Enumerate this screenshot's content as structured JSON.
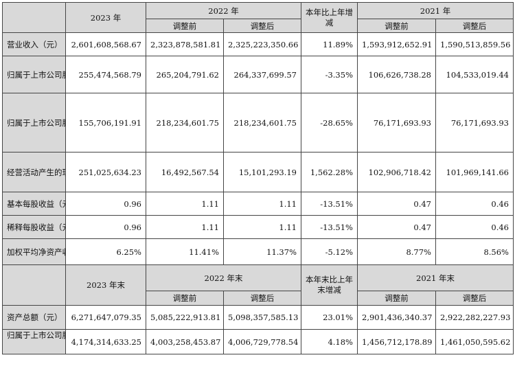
{
  "header1": {
    "y2023": "2023 年",
    "y2022": "2022 年",
    "change": "本年比上年增减",
    "y2021": "2021 年",
    "before": "调整前",
    "after": "调整后"
  },
  "rows1": [
    {
      "label": "营业收入（元）",
      "v2023": "2,601,608,568.67",
      "v2022_before": "2,323,878,581.81",
      "v2022_after": "2,325,223,350.66",
      "change": "11.89%",
      "v2021_before": "1,593,912,652.91",
      "v2021_after": "1,590,513,859.56"
    },
    {
      "label": "归属于上市公司股东的净利润（元）",
      "v2023": "255,474,568.79",
      "v2022_before": "265,204,791.62",
      "v2022_after": "264,337,699.57",
      "change": "-3.35%",
      "v2021_before": "106,626,738.28",
      "v2021_after": "104,533,019.44"
    },
    {
      "label": "归属于上市公司股东的扣除非经常性损益的净利润（元）",
      "v2023": "155,706,191.91",
      "v2022_before": "218,234,601.75",
      "v2022_after": "218,234,601.75",
      "change": "-28.65%",
      "v2021_before": "76,171,693.93",
      "v2021_after": "76,171,693.93"
    },
    {
      "label": "经营活动产生的现金流量净额（元）",
      "v2023": "251,025,634.23",
      "v2022_before": "16,492,567.54",
      "v2022_after": "15,101,293.19",
      "change": "1,562.28%",
      "v2021_before": "102,906,718.42",
      "v2021_after": "101,969,141.66"
    },
    {
      "label": "基本每股收益（元/股）",
      "v2023": "0.96",
      "v2022_before": "1.11",
      "v2022_after": "1.11",
      "change": "-13.51%",
      "v2021_before": "0.47",
      "v2021_after": "0.46"
    },
    {
      "label": "稀释每股收益（元/股）",
      "v2023": "0.96",
      "v2022_before": "1.11",
      "v2022_after": "1.11",
      "change": "-13.51%",
      "v2021_before": "0.47",
      "v2021_after": "0.46"
    },
    {
      "label": "加权平均净资产收益率",
      "v2023": "6.25%",
      "v2022_before": "11.41%",
      "v2022_after": "11.37%",
      "change": "-5.12%",
      "v2021_before": "8.77%",
      "v2021_after": "8.56%"
    }
  ],
  "header2": {
    "y2023": "2023 年末",
    "y2022": "2022 年末",
    "change": "本年末比上年末增减",
    "y2021": "2021 年末",
    "before": "调整前",
    "after": "调整后"
  },
  "rows2": [
    {
      "label": "资产总额（元）",
      "v2023": "6,271,647,079.35",
      "v2022_before": "5,085,222,913.81",
      "v2022_after": "5,098,357,585.13",
      "change": "23.01%",
      "v2021_before": "2,901,436,340.37",
      "v2021_after": "2,922,282,227.93"
    },
    {
      "label": "归属于上市公司股东的净资",
      "v2023": "4,174,314,633.25",
      "v2022_before": "4,003,258,453.87",
      "v2022_after": "4,006,729,778.54",
      "change": "4.18%",
      "v2021_before": "1,456,712,178.89",
      "v2021_after": "1,461,050,595.62"
    }
  ]
}
